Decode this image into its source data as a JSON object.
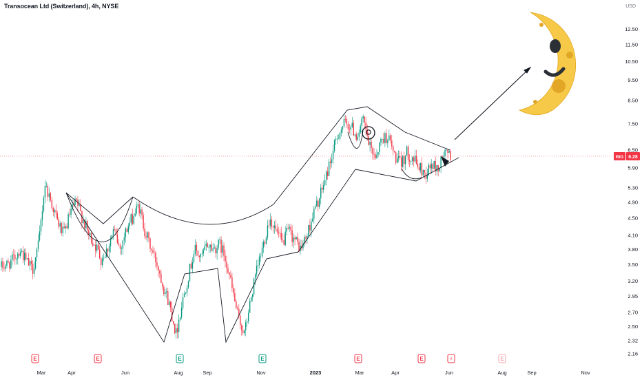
{
  "header": {
    "title": "Transocean Ltd (Switzerland), 4h, NYSE"
  },
  "chart_data": {
    "type": "candlestick",
    "currency_label": "USD",
    "y_scale": "log",
    "ylim": [
      2.1,
      14.2
    ],
    "y_ticks": [
      "12.50",
      "11.50",
      "10.50",
      "9.50",
      "8.50",
      "7.50",
      "6.50",
      "5.90",
      "5.30",
      "4.90",
      "4.50",
      "4.10",
      "3.80",
      "3.50",
      "3.20",
      "2.95",
      "2.70",
      "2.50",
      "2.32",
      "2.16"
    ],
    "x_ticks": [
      "Mar",
      "Apr",
      "Jun",
      "Aug",
      "Sep",
      "Nov",
      "2023",
      "Mar",
      "Apr",
      "Jun",
      "Aug",
      "Sep",
      "Nov"
    ],
    "symbol": "RIG",
    "last_price": "6.28",
    "last_value": 6.28,
    "event_markers": [
      {
        "label": "E",
        "color": "#f23645"
      },
      {
        "label": "E",
        "color": "#f23645"
      },
      {
        "label": "E",
        "color": "#089981"
      },
      {
        "label": "E",
        "color": "#089981"
      },
      {
        "label": "E",
        "color": "#f23645"
      },
      {
        "label": "E",
        "color": "#f23645"
      },
      {
        "label": "⚡",
        "color": "#f23645"
      },
      {
        "label": "E",
        "color": "#f8a5ac"
      }
    ],
    "colors": {
      "up": "#089981",
      "down": "#f23645",
      "drawing": "#131722",
      "moon": "#f7c948"
    },
    "price_path": [
      3.45,
      3.5,
      3.6,
      3.8,
      3.55,
      3.4,
      3.9,
      5.4,
      4.9,
      4.4,
      4.1,
      4.6,
      4.9,
      4.5,
      4.1,
      3.9,
      3.6,
      3.8,
      4.2,
      3.8,
      4.2,
      4.5,
      4.8,
      4.2,
      3.8,
      3.5,
      3.1,
      2.8,
      2.4,
      2.85,
      3.3,
      3.8,
      3.6,
      3.9,
      3.8,
      3.9,
      3.6,
      3.05,
      2.6,
      2.4,
      2.9,
      3.4,
      3.9,
      4.5,
      4.2,
      3.9,
      4.2,
      4.0,
      3.8,
      4.1,
      4.6,
      5.0,
      5.6,
      6.3,
      7.1,
      7.5,
      7.4,
      7.0,
      7.6,
      6.6,
      6.3,
      6.9,
      7.0,
      6.3,
      6.0,
      6.4,
      6.2,
      5.9,
      5.7,
      6.0,
      5.85,
      6.4,
      6.28
    ]
  }
}
